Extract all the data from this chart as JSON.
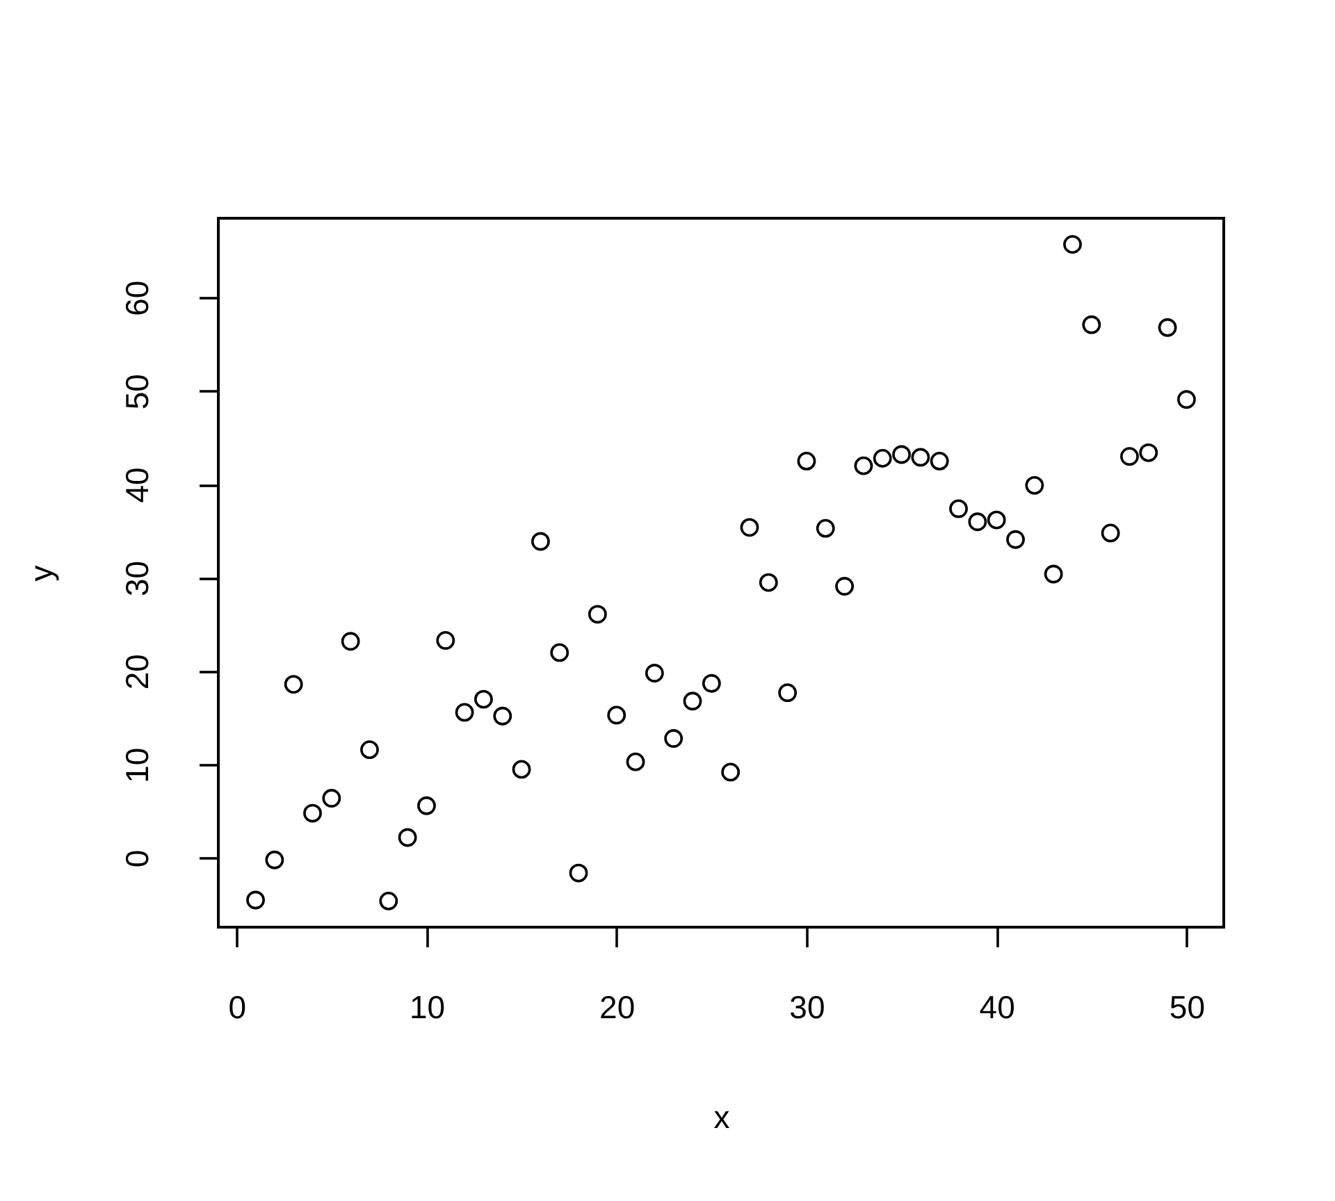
{
  "chart_data": {
    "type": "scatter",
    "xlabel": "x",
    "ylabel": "y",
    "x": [
      1,
      2,
      3,
      4,
      5,
      6,
      7,
      8,
      9,
      10,
      11,
      12,
      13,
      14,
      15,
      16,
      17,
      18,
      19,
      20,
      21,
      22,
      23,
      24,
      25,
      26,
      27,
      28,
      29,
      30,
      31,
      32,
      33,
      34,
      35,
      36,
      37,
      38,
      39,
      40,
      41,
      42,
      43,
      44,
      45,
      46,
      47,
      48,
      49,
      50
    ],
    "series": [
      {
        "color": "#000000",
        "values": [
          -4.5,
          -0.2,
          18.6,
          4.8,
          6.4,
          23.2,
          11.6,
          -4.6,
          2.2,
          5.6,
          23.3,
          15.6,
          17.0,
          15.2,
          9.5,
          33.9,
          22.0,
          -1.6,
          26.1,
          15.3,
          10.3,
          19.8,
          12.8,
          16.8,
          18.7,
          9.2,
          35.4,
          29.5,
          17.7,
          42.5,
          35.3,
          29.1,
          42.0,
          42.8,
          43.2,
          42.9,
          42.5,
          37.4,
          36.0,
          36.2,
          34.1,
          39.9,
          30.4,
          65.7,
          57.1,
          34.8,
          43.0,
          43.4,
          56.8,
          49.1
        ]
      }
    ],
    "marker": "circle",
    "xlim": [
      -0.96,
      51.96
    ],
    "ylim": [
      -7.4,
      68.5
    ],
    "xticks": [
      0,
      10,
      20,
      30,
      40,
      50
    ],
    "yticks": [
      0,
      10,
      20,
      30,
      40,
      50,
      60
    ],
    "grid": false,
    "legend": false
  }
}
